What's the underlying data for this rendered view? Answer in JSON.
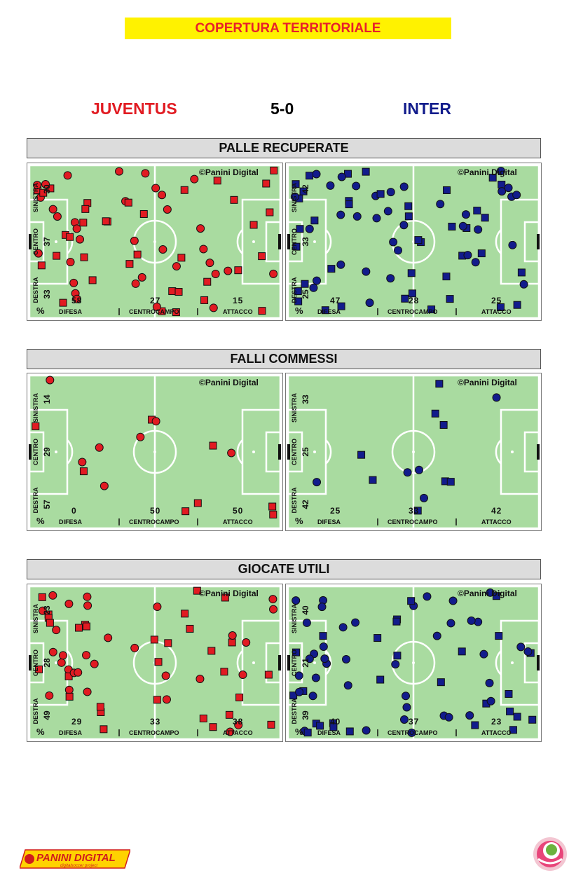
{
  "banner": "COPERTURA TERRITORIALE",
  "match": {
    "home": "JUVENTUS",
    "score": "5-0",
    "away": "INTER"
  },
  "colors": {
    "home": "#e11b22",
    "away": "#121c8c",
    "pitch": "#a9dba0"
  },
  "labels": {
    "credit": "©Panini  Digital",
    "left": "SINISTRA",
    "center": "CENTRO",
    "right": "DESTRA",
    "defense": "DIFESA",
    "midfield": "CENTROCAMPO",
    "attack": "ATTACCO",
    "pct": "%"
  },
  "sections": [
    {
      "title": "PALLE RECUPERATE",
      "home": {
        "lanes": [
          "30",
          "37",
          "33"
        ],
        "thirds": [
          "58",
          "27",
          "15"
        ]
      },
      "away": {
        "lanes": [
          "42",
          "33",
          "25"
        ],
        "thirds": [
          "47",
          "28",
          "25"
        ]
      }
    },
    {
      "title": "FALLI COMMESSI",
      "home": {
        "lanes": [
          "14",
          "29",
          "57"
        ],
        "thirds": [
          "0",
          "50",
          "50"
        ]
      },
      "away": {
        "lanes": [
          "33",
          "25",
          "42"
        ],
        "thirds": [
          "25",
          "33",
          "42"
        ]
      }
    },
    {
      "title": "GIOCATE UTILI",
      "home": {
        "lanes": [
          "23",
          "28",
          "49"
        ],
        "thirds": [
          "29",
          "33",
          "38"
        ]
      },
      "away": {
        "lanes": [
          "40",
          "21",
          "39"
        ],
        "thirds": [
          "40",
          "37",
          "23"
        ]
      }
    }
  ],
  "footer": {
    "brand": "PANINI DIGITAL",
    "tagline": "digitalsoccer project"
  }
}
